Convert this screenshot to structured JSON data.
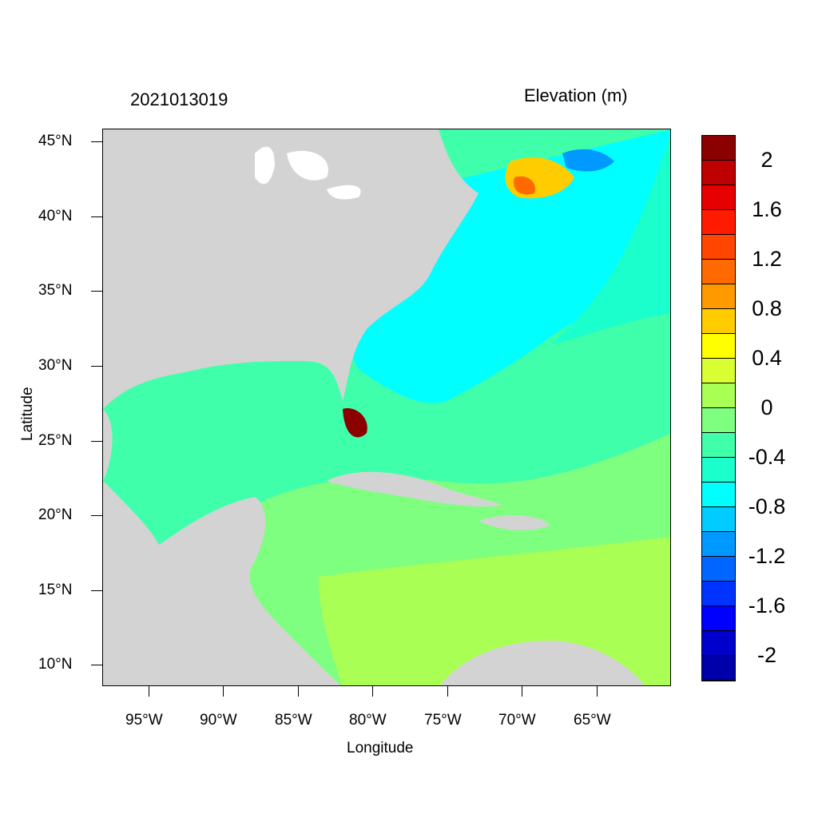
{
  "header": {
    "time_label": "2021013019",
    "variable_label": "Elevation (m)"
  },
  "axes": {
    "xlabel": "Longitude",
    "ylabel": "Latitude",
    "xticks": [
      "95°W",
      "90°W",
      "85°W",
      "80°W",
      "75°W",
      "70°W",
      "65°W"
    ],
    "yticks": [
      "45°N",
      "40°N",
      "35°N",
      "30°N",
      "25°N",
      "20°N",
      "15°N",
      "10°N"
    ]
  },
  "colorbar": {
    "labels": [
      "2",
      "1.6",
      "1.2",
      "0.8",
      "0.4",
      "0",
      "-0.4",
      "-0.8",
      "-1.2",
      "-1.6",
      "-2"
    ],
    "colors": [
      "#8b0000",
      "#bf0000",
      "#e60000",
      "#ff1a00",
      "#ff4500",
      "#ff6a00",
      "#ff9900",
      "#ffcc00",
      "#ffff00",
      "#d9ff33",
      "#aaff55",
      "#7fff7f",
      "#40ffaa",
      "#1affcc",
      "#00ffff",
      "#00ccff",
      "#0099ff",
      "#0066ff",
      "#0033ff",
      "#0000ff",
      "#0000cc",
      "#0000aa"
    ]
  },
  "map": {
    "land_color": "#d3d3d3",
    "water_color": "#ffffff",
    "extent": {
      "lon": [
        -98,
        -60
      ],
      "lat": [
        8.5,
        46
      ]
    }
  }
}
